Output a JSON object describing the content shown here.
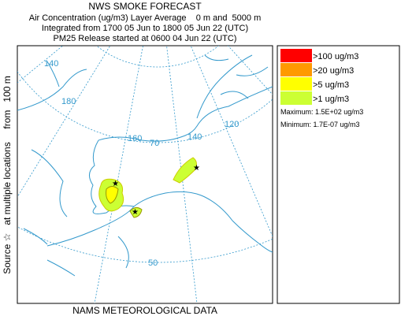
{
  "header": {
    "title": "NWS SMOKE FORECAST",
    "lines": [
      "Air Concentration (ug/m3) Layer Average    0 m and  5000 m",
      "Integrated from 1700 05 Jun to 1800 05 Jun 22 (UTC)",
      "PM25 Release started at 0600 04 Jun 22 (UTC)"
    ]
  },
  "side_label": "Source ☆   at multiple locations     from   100 m",
  "map": {
    "grid_labels": [
      "140",
      "180",
      "160",
      "70",
      "140",
      "120",
      "50"
    ]
  },
  "legend": {
    "items": [
      {
        "label": ">100 ug/m3",
        "color": "#ff0000"
      },
      {
        "label": ">20 ug/m3",
        "color": "#ff9900"
      },
      {
        "label": ">5 ug/m3",
        "color": "#ffff00"
      },
      {
        "label": ">1 ug/m3",
        "color": "#ccff33"
      }
    ],
    "maximum": "Maximum: 1.5E+02 ug/m3",
    "minimum": "Minimum: 1.7E-07 ug/m3"
  },
  "footer": "NAMS METEOROLOGICAL DATA"
}
